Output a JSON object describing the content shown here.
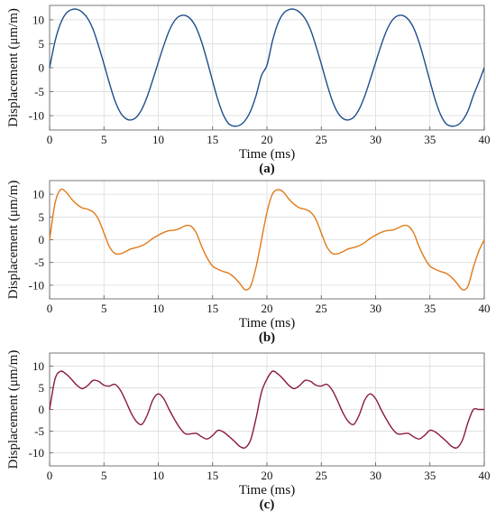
{
  "chart_data": [
    {
      "type": "line",
      "panel_label": "(a)",
      "xlabel": "Time (ms)",
      "ylabel": "Displacement (μm/m)",
      "xlim": [
        0,
        40
      ],
      "ylim": [
        -13,
        13
      ],
      "xticks": [
        0,
        5,
        10,
        15,
        20,
        25,
        30,
        35,
        40
      ],
      "yticks": [
        -10,
        -5,
        0,
        5,
        10
      ],
      "grid": true,
      "series": [
        {
          "color": "#1f4e8c",
          "x": [
            0,
            0.5,
            1,
            1.5,
            2,
            2.5,
            3,
            3.5,
            4,
            4.5,
            5,
            5.5,
            6,
            6.5,
            7,
            7.5,
            8,
            8.5,
            9,
            9.5,
            10,
            10.5,
            11,
            11.5,
            12,
            12.5,
            13,
            13.5,
            14,
            14.5,
            15,
            15.5,
            16,
            16.5,
            17,
            17.5,
            18,
            18.5,
            19,
            19.5,
            20,
            20.5,
            21,
            21.5,
            22,
            22.5,
            23,
            23.5,
            24,
            24.5,
            25,
            25.5,
            26,
            26.5,
            27,
            27.5,
            28,
            28.5,
            29,
            29.5,
            30,
            30.5,
            31,
            31.5,
            32,
            32.5,
            33,
            33.5,
            34,
            34.5,
            35,
            35.5,
            36,
            36.5,
            37,
            37.5,
            38,
            38.5,
            39,
            39.5,
            40
          ],
          "y": [
            0,
            5.5,
            9.2,
            11.3,
            12.1,
            12.2,
            11.6,
            10.3,
            8.0,
            4.6,
            0.8,
            -3.2,
            -6.8,
            -9.3,
            -10.6,
            -10.9,
            -10.3,
            -8.6,
            -5.9,
            -2.5,
            1.1,
            4.6,
            7.7,
            9.8,
            10.8,
            10.9,
            10.1,
            8.3,
            5.3,
            1.4,
            -2.8,
            -6.8,
            -9.9,
            -11.7,
            -12.2,
            -12.0,
            -11.0,
            -9.0,
            -5.8,
            -1.6,
            0.5,
            5.5,
            9.2,
            11.3,
            12.1,
            12.2,
            11.6,
            10.3,
            8.0,
            4.6,
            0.8,
            -3.2,
            -6.8,
            -9.3,
            -10.6,
            -10.9,
            -10.3,
            -8.6,
            -5.9,
            -2.5,
            1.1,
            4.6,
            7.7,
            9.8,
            10.8,
            10.9,
            10.1,
            8.3,
            5.3,
            1.4,
            -2.8,
            -6.8,
            -9.9,
            -11.7,
            -12.2,
            -12.0,
            -11.0,
            -9.0,
            -5.8,
            -3.0,
            0
          ]
        }
      ]
    },
    {
      "type": "line",
      "panel_label": "(b)",
      "xlabel": "Time (ms)",
      "ylabel": "Displacement (μm/m)",
      "xlim": [
        0,
        40
      ],
      "ylim": [
        -13,
        13
      ],
      "xticks": [
        0,
        5,
        10,
        15,
        20,
        25,
        30,
        35,
        40
      ],
      "yticks": [
        -10,
        -5,
        0,
        5,
        10
      ],
      "grid": true,
      "series": [
        {
          "color": "#e07b1a",
          "x": [
            0,
            0.5,
            1,
            1.5,
            2,
            2.5,
            3,
            3.5,
            4,
            4.5,
            5,
            5.5,
            6,
            6.5,
            7,
            7.5,
            8,
            8.5,
            9,
            9.5,
            10,
            10.5,
            11,
            11.5,
            12,
            12.5,
            13,
            13.5,
            14,
            14.5,
            15,
            15.5,
            16,
            16.5,
            17,
            17.5,
            18,
            18.5,
            19,
            19.5,
            20,
            20.5,
            21,
            21.5,
            22,
            22.5,
            23,
            23.5,
            24,
            24.5,
            25,
            25.5,
            26,
            26.5,
            27,
            27.5,
            28,
            28.5,
            29,
            29.5,
            30,
            30.5,
            31,
            31.5,
            32,
            32.5,
            33,
            33.5,
            34,
            34.5,
            35,
            35.5,
            36,
            36.5,
            37,
            37.5,
            38,
            38.5,
            39,
            39.5,
            40
          ],
          "y": [
            0,
            8.0,
            11.0,
            10.5,
            9.0,
            7.8,
            7.0,
            6.7,
            6.1,
            4.5,
            1.5,
            -1.5,
            -3.0,
            -3.1,
            -2.6,
            -2.0,
            -1.7,
            -1.3,
            -0.6,
            0.3,
            1.0,
            1.6,
            2.0,
            2.1,
            2.5,
            3.1,
            3.0,
            1.5,
            -1.5,
            -4.0,
            -5.8,
            -6.5,
            -7.0,
            -7.4,
            -8.3,
            -9.6,
            -11.0,
            -10.2,
            -6.0,
            0.0,
            6.0,
            10.0,
            11.0,
            10.5,
            9.0,
            7.8,
            7.0,
            6.7,
            6.1,
            4.5,
            1.5,
            -1.5,
            -3.0,
            -3.1,
            -2.6,
            -2.0,
            -1.7,
            -1.3,
            -0.6,
            0.3,
            1.0,
            1.6,
            2.0,
            2.1,
            2.5,
            3.1,
            3.0,
            1.5,
            -1.5,
            -4.0,
            -5.8,
            -6.5,
            -7.0,
            -7.4,
            -8.3,
            -9.6,
            -11.0,
            -10.2,
            -6.0,
            -2.5,
            0
          ]
        }
      ]
    },
    {
      "type": "line",
      "panel_label": "(c)",
      "xlabel": "Time (ms)",
      "ylabel": "Displacement (μm/m)",
      "xlim": [
        0,
        40
      ],
      "ylim": [
        -13,
        13
      ],
      "xticks": [
        0,
        5,
        10,
        15,
        20,
        25,
        30,
        35,
        40
      ],
      "yticks": [
        -10,
        -5,
        0,
        5,
        10
      ],
      "grid": true,
      "series": [
        {
          "color": "#8b1a3a",
          "x": [
            0,
            0.5,
            1,
            1.5,
            2,
            2.5,
            3,
            3.5,
            4,
            4.5,
            5,
            5.5,
            6,
            6.5,
            7,
            7.5,
            8,
            8.5,
            9,
            9.5,
            10,
            10.5,
            11,
            11.5,
            12,
            12.5,
            13,
            13.5,
            14,
            14.5,
            15,
            15.5,
            16,
            16.5,
            17,
            17.5,
            18,
            18.5,
            19,
            19.5,
            20,
            20.5,
            21,
            21.5,
            22,
            22.5,
            23,
            23.5,
            24,
            24.5,
            25,
            25.5,
            26,
            26.5,
            27,
            27.5,
            28,
            28.5,
            29,
            29.5,
            30,
            30.5,
            31,
            31.5,
            32,
            32.5,
            33,
            33.5,
            34,
            34.5,
            35,
            35.5,
            36,
            36.5,
            37,
            37.5,
            38,
            38.5,
            39,
            39.5,
            40
          ],
          "y": [
            0,
            7.0,
            8.8,
            8.2,
            7.0,
            5.6,
            4.8,
            5.5,
            6.7,
            6.5,
            5.6,
            5.4,
            5.8,
            4.5,
            2.0,
            -0.8,
            -2.8,
            -3.4,
            -1.2,
            2.2,
            3.6,
            2.5,
            0.0,
            -2.3,
            -4.3,
            -5.6,
            -5.6,
            -5.5,
            -6.3,
            -6.8,
            -6.0,
            -4.8,
            -5.2,
            -6.2,
            -7.3,
            -8.5,
            -8.8,
            -7.0,
            -2.0,
            4.0,
            7.0,
            8.8,
            8.2,
            7.0,
            5.6,
            4.8,
            5.5,
            6.7,
            6.5,
            5.6,
            5.4,
            5.8,
            4.5,
            2.0,
            -0.8,
            -2.8,
            -3.4,
            -1.2,
            2.2,
            3.6,
            2.5,
            0.0,
            -2.3,
            -4.3,
            -5.6,
            -5.6,
            -5.5,
            -6.3,
            -6.8,
            -6.0,
            -4.8,
            -5.2,
            -6.2,
            -7.3,
            -8.5,
            -8.8,
            -7.0,
            -3.0,
            0,
            0,
            0
          ]
        }
      ]
    }
  ]
}
